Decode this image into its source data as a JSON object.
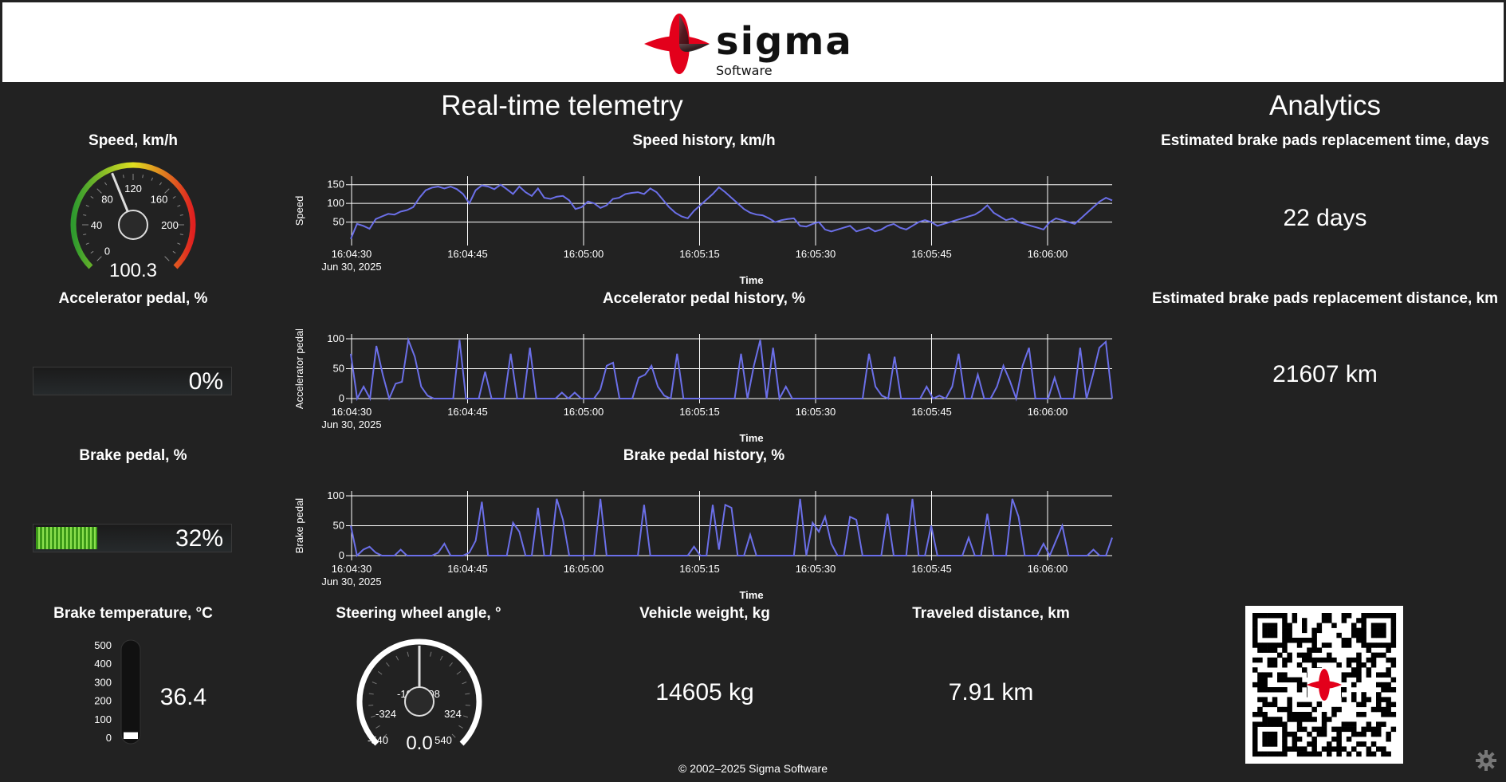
{
  "brand": {
    "name": "sigma",
    "sub": "Software",
    "colors": {
      "red": "#e3001b",
      "dark": "#111111"
    }
  },
  "sections": {
    "telemetry": "Real-time telemetry",
    "analytics": "Analytics"
  },
  "speed_gauge": {
    "title": "Speed, km/h",
    "value": "100.3",
    "value_num": 100.3,
    "max": 240,
    "ticks": [
      "0",
      "40",
      "80",
      "120",
      "160",
      "200"
    ]
  },
  "accelerator": {
    "title": "Accelerator pedal, %",
    "label": "0%",
    "percent": 0
  },
  "brake": {
    "title": "Brake pedal, %",
    "label": "32%",
    "percent": 32
  },
  "brake_temp": {
    "title": "Brake temperature, °C",
    "value": "36.4",
    "value_num": 36.4,
    "ticks": [
      "500",
      "400",
      "300",
      "200",
      "100",
      "0"
    ]
  },
  "steering": {
    "title": "Steering wheel angle, °",
    "value": "0.0",
    "value_num": 0.0,
    "ticks": [
      "-540",
      "-324",
      "-108",
      "108",
      "324",
      "540"
    ]
  },
  "weight": {
    "title": "Vehicle weight, kg",
    "value": "14605 kg"
  },
  "distance": {
    "title": "Traveled distance, km",
    "value": "7.91 km"
  },
  "analytics": {
    "time_title": "Estimated brake pads replacement time, days",
    "time_value": "22 days",
    "dist_title": "Estimated brake pads replacement distance, km",
    "dist_value": "21607 km"
  },
  "footer": {
    "copyright": "© 2002–2025 Sigma Software"
  },
  "icons": {
    "settings": "gear-icon",
    "qr": "qr-code-icon"
  },
  "chart_data": [
    {
      "type": "line",
      "title": "Speed history, km/h",
      "xlabel": "Time",
      "ylabel": "Speed",
      "ylim": [
        0,
        160
      ],
      "yticks": [
        "50",
        "100",
        "150"
      ],
      "ytick_values": [
        50,
        100,
        150
      ],
      "xticks": [
        "16:04:30",
        "16:04:45",
        "16:05:00",
        "16:05:15",
        "16:05:30",
        "16:05:45",
        "16:06:00"
      ],
      "x_date": "Jun 30, 2025",
      "color": "#6b6fe8",
      "values": [
        5,
        45,
        40,
        32,
        58,
        65,
        72,
        70,
        78,
        82,
        90,
        115,
        135,
        142,
        145,
        140,
        145,
        138,
        125,
        100,
        135,
        148,
        145,
        138,
        150,
        138,
        125,
        145,
        130,
        120,
        140,
        115,
        112,
        118,
        120,
        108,
        85,
        90,
        105,
        100,
        88,
        95,
        112,
        115,
        125,
        128,
        130,
        125,
        140,
        130,
        110,
        90,
        75,
        65,
        60,
        80,
        95,
        110,
        125,
        143,
        130,
        115,
        100,
        85,
        75,
        70,
        68,
        60,
        50,
        55,
        58,
        60,
        40,
        38,
        45,
        50,
        30,
        25,
        30,
        35,
        40,
        25,
        30,
        35,
        25,
        30,
        40,
        45,
        35,
        30,
        40,
        50,
        55,
        50,
        40,
        45,
        50,
        55,
        60,
        65,
        70,
        80,
        95,
        75,
        65,
        55,
        60,
        50,
        45,
        40,
        35,
        30,
        50,
        60,
        55,
        50,
        45,
        60,
        75,
        90,
        105,
        115,
        108
      ]
    },
    {
      "type": "line",
      "title": "Accelerator pedal history, %",
      "xlabel": "Time",
      "ylabel": "Accelerator pedal",
      "ylim": [
        0,
        100
      ],
      "yticks": [
        "0",
        "50",
        "100"
      ],
      "ytick_values": [
        0,
        50,
        100
      ],
      "xticks": [
        "16:04:30",
        "16:04:45",
        "16:05:00",
        "16:05:15",
        "16:05:30",
        "16:05:45",
        "16:06:00"
      ],
      "x_date": "Jun 30, 2025",
      "color": "#6b6fe8",
      "values": [
        75,
        0,
        20,
        0,
        88,
        40,
        0,
        25,
        28,
        98,
        70,
        20,
        5,
        0,
        0,
        0,
        0,
        98,
        0,
        0,
        0,
        45,
        0,
        0,
        0,
        75,
        0,
        0,
        85,
        0,
        0,
        0,
        0,
        10,
        0,
        10,
        0,
        0,
        0,
        15,
        55,
        60,
        0,
        0,
        0,
        35,
        40,
        55,
        20,
        5,
        0,
        75,
        0,
        0,
        0,
        0,
        0,
        0,
        0,
        0,
        0,
        75,
        0,
        55,
        98,
        0,
        85,
        0,
        20,
        0,
        0,
        0,
        0,
        0,
        0,
        0,
        0,
        0,
        0,
        0,
        0,
        75,
        20,
        5,
        0,
        70,
        0,
        0,
        0,
        0,
        20,
        0,
        5,
        0,
        20,
        75,
        0,
        0,
        40,
        0,
        0,
        20,
        55,
        30,
        0,
        55,
        85,
        0,
        0,
        0,
        35,
        0,
        0,
        0,
        85,
        0,
        40,
        85,
        95,
        0
      ]
    },
    {
      "type": "line",
      "title": "Brake pedal history, %",
      "xlabel": "Time",
      "ylabel": "Brake pedal",
      "ylim": [
        0,
        100
      ],
      "yticks": [
        "0",
        "50",
        "100"
      ],
      "ytick_values": [
        0,
        50,
        100
      ],
      "xticks": [
        "16:04:30",
        "16:04:45",
        "16:05:00",
        "16:05:15",
        "16:05:30",
        "16:05:45",
        "16:06:00"
      ],
      "x_date": "Jun 30, 2025",
      "color": "#6b6fe8",
      "values": [
        50,
        0,
        10,
        15,
        5,
        0,
        0,
        0,
        10,
        0,
        0,
        0,
        0,
        0,
        5,
        20,
        0,
        0,
        0,
        5,
        25,
        90,
        0,
        0,
        0,
        0,
        55,
        40,
        0,
        0,
        80,
        0,
        0,
        95,
        60,
        0,
        0,
        0,
        0,
        0,
        95,
        0,
        0,
        0,
        0,
        0,
        0,
        85,
        0,
        0,
        0,
        0,
        0,
        0,
        0,
        15,
        0,
        0,
        85,
        10,
        85,
        80,
        0,
        0,
        35,
        0,
        0,
        0,
        0,
        0,
        0,
        0,
        95,
        0,
        55,
        40,
        65,
        20,
        0,
        0,
        65,
        60,
        0,
        0,
        0,
        0,
        70,
        0,
        0,
        0,
        95,
        0,
        0,
        50,
        0,
        0,
        0,
        0,
        0,
        30,
        0,
        0,
        70,
        0,
        0,
        0,
        95,
        65,
        0,
        0,
        0,
        20,
        0,
        25,
        50,
        0,
        0,
        0,
        0,
        10,
        0,
        0,
        30
      ]
    }
  ]
}
